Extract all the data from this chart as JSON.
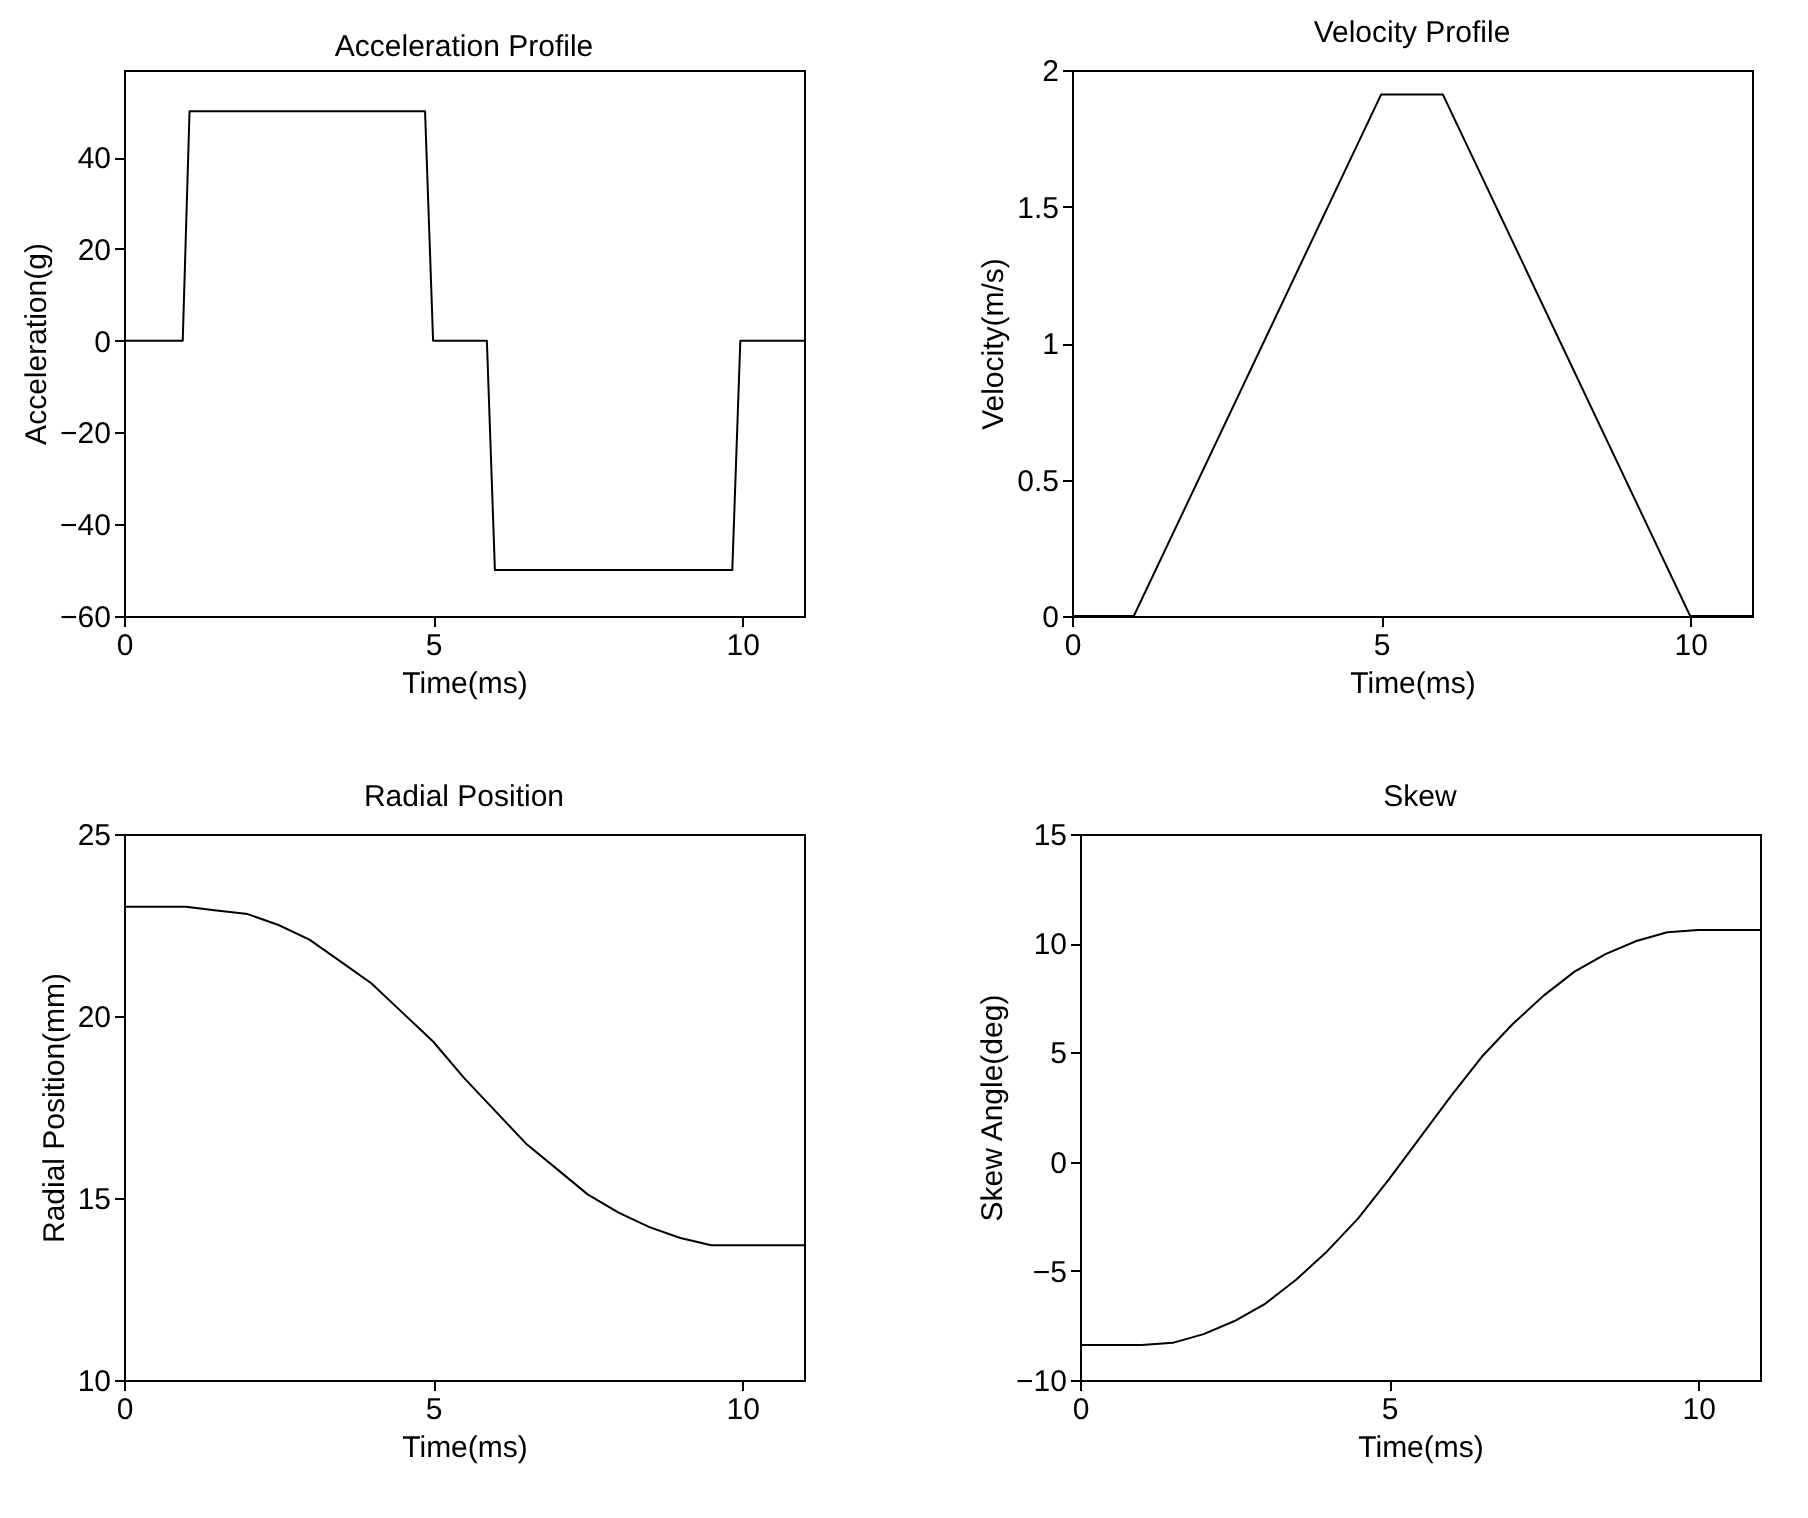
{
  "chart_data": [
    {
      "type": "line",
      "title": "Acceleration Profile",
      "xlabel": "Time(ms)",
      "ylabel": "Acceleration(g)",
      "xlim": [
        0,
        11
      ],
      "xticks": [
        0,
        5,
        10
      ],
      "ylim": [
        -60,
        59
      ],
      "yticks": [
        -60,
        -40,
        -20,
        0,
        20,
        40
      ],
      "grid": false,
      "series": [
        {
          "color": "#000000",
          "x": [
            0,
            0.95,
            1.06,
            4.87,
            5.0,
            5.87,
            6.0,
            9.84,
            9.97,
            11
          ],
          "values": [
            0,
            0,
            50,
            50,
            0,
            0,
            -50,
            -50,
            0,
            0
          ]
        }
      ]
    },
    {
      "type": "line",
      "title": "Velocity Profile",
      "xlabel": "Time(ms)",
      "ylabel": "Velocity(m/s)",
      "xlim": [
        0,
        11
      ],
      "xticks": [
        0,
        5,
        10
      ],
      "ylim": [
        0,
        2
      ],
      "yticks": [
        0,
        0.5,
        1,
        1.5,
        2
      ],
      "grid": false,
      "series": [
        {
          "color": "#000000",
          "x": [
            0,
            1,
            5,
            6,
            10,
            11
          ],
          "values": [
            0,
            0,
            1.91,
            1.91,
            0,
            0
          ]
        }
      ]
    },
    {
      "type": "line",
      "title": "Radial Position",
      "xlabel": "Time(ms)",
      "ylabel": "Radial Position(mm)",
      "xlim": [
        0,
        11
      ],
      "xticks": [
        0,
        5,
        10
      ],
      "ylim": [
        10,
        25
      ],
      "yticks": [
        10,
        15,
        20,
        25
      ],
      "grid": false,
      "series": [
        {
          "color": "#000000",
          "x": [
            0,
            1,
            1.5,
            2,
            2.5,
            3,
            3.5,
            4,
            4.5,
            5,
            5.5,
            6,
            6.5,
            7,
            7.5,
            8,
            8.5,
            9,
            9.5,
            10,
            11
          ],
          "values": [
            23,
            23,
            22.9,
            22.8,
            22.5,
            22.1,
            21.5,
            20.9,
            20.1,
            19.3,
            18.3,
            17.4,
            16.5,
            15.8,
            15.1,
            14.6,
            14.2,
            13.9,
            13.7,
            13.7,
            13.7
          ]
        }
      ]
    },
    {
      "type": "line",
      "title": "Skew",
      "xlabel": "Time(ms)",
      "ylabel": "Skew Angle(deg)",
      "xlim": [
        0,
        11
      ],
      "xticks": [
        0,
        5,
        10
      ],
      "ylim": [
        -10,
        15
      ],
      "yticks": [
        -10,
        -5,
        0,
        5,
        10,
        15
      ],
      "grid": false,
      "series": [
        {
          "color": "#000000",
          "x": [
            0,
            1,
            1.5,
            2,
            2.5,
            3,
            3.5,
            4,
            4.5,
            5,
            5.5,
            6,
            6.5,
            7,
            7.5,
            8,
            8.5,
            9,
            9.5,
            10,
            11
          ],
          "values": [
            -8.4,
            -8.4,
            -8.3,
            -7.9,
            -7.3,
            -6.5,
            -5.4,
            -4.1,
            -2.6,
            -0.8,
            1.1,
            3.0,
            4.8,
            6.3,
            7.6,
            8.7,
            9.5,
            10.1,
            10.5,
            10.6,
            10.6
          ]
        }
      ]
    }
  ]
}
